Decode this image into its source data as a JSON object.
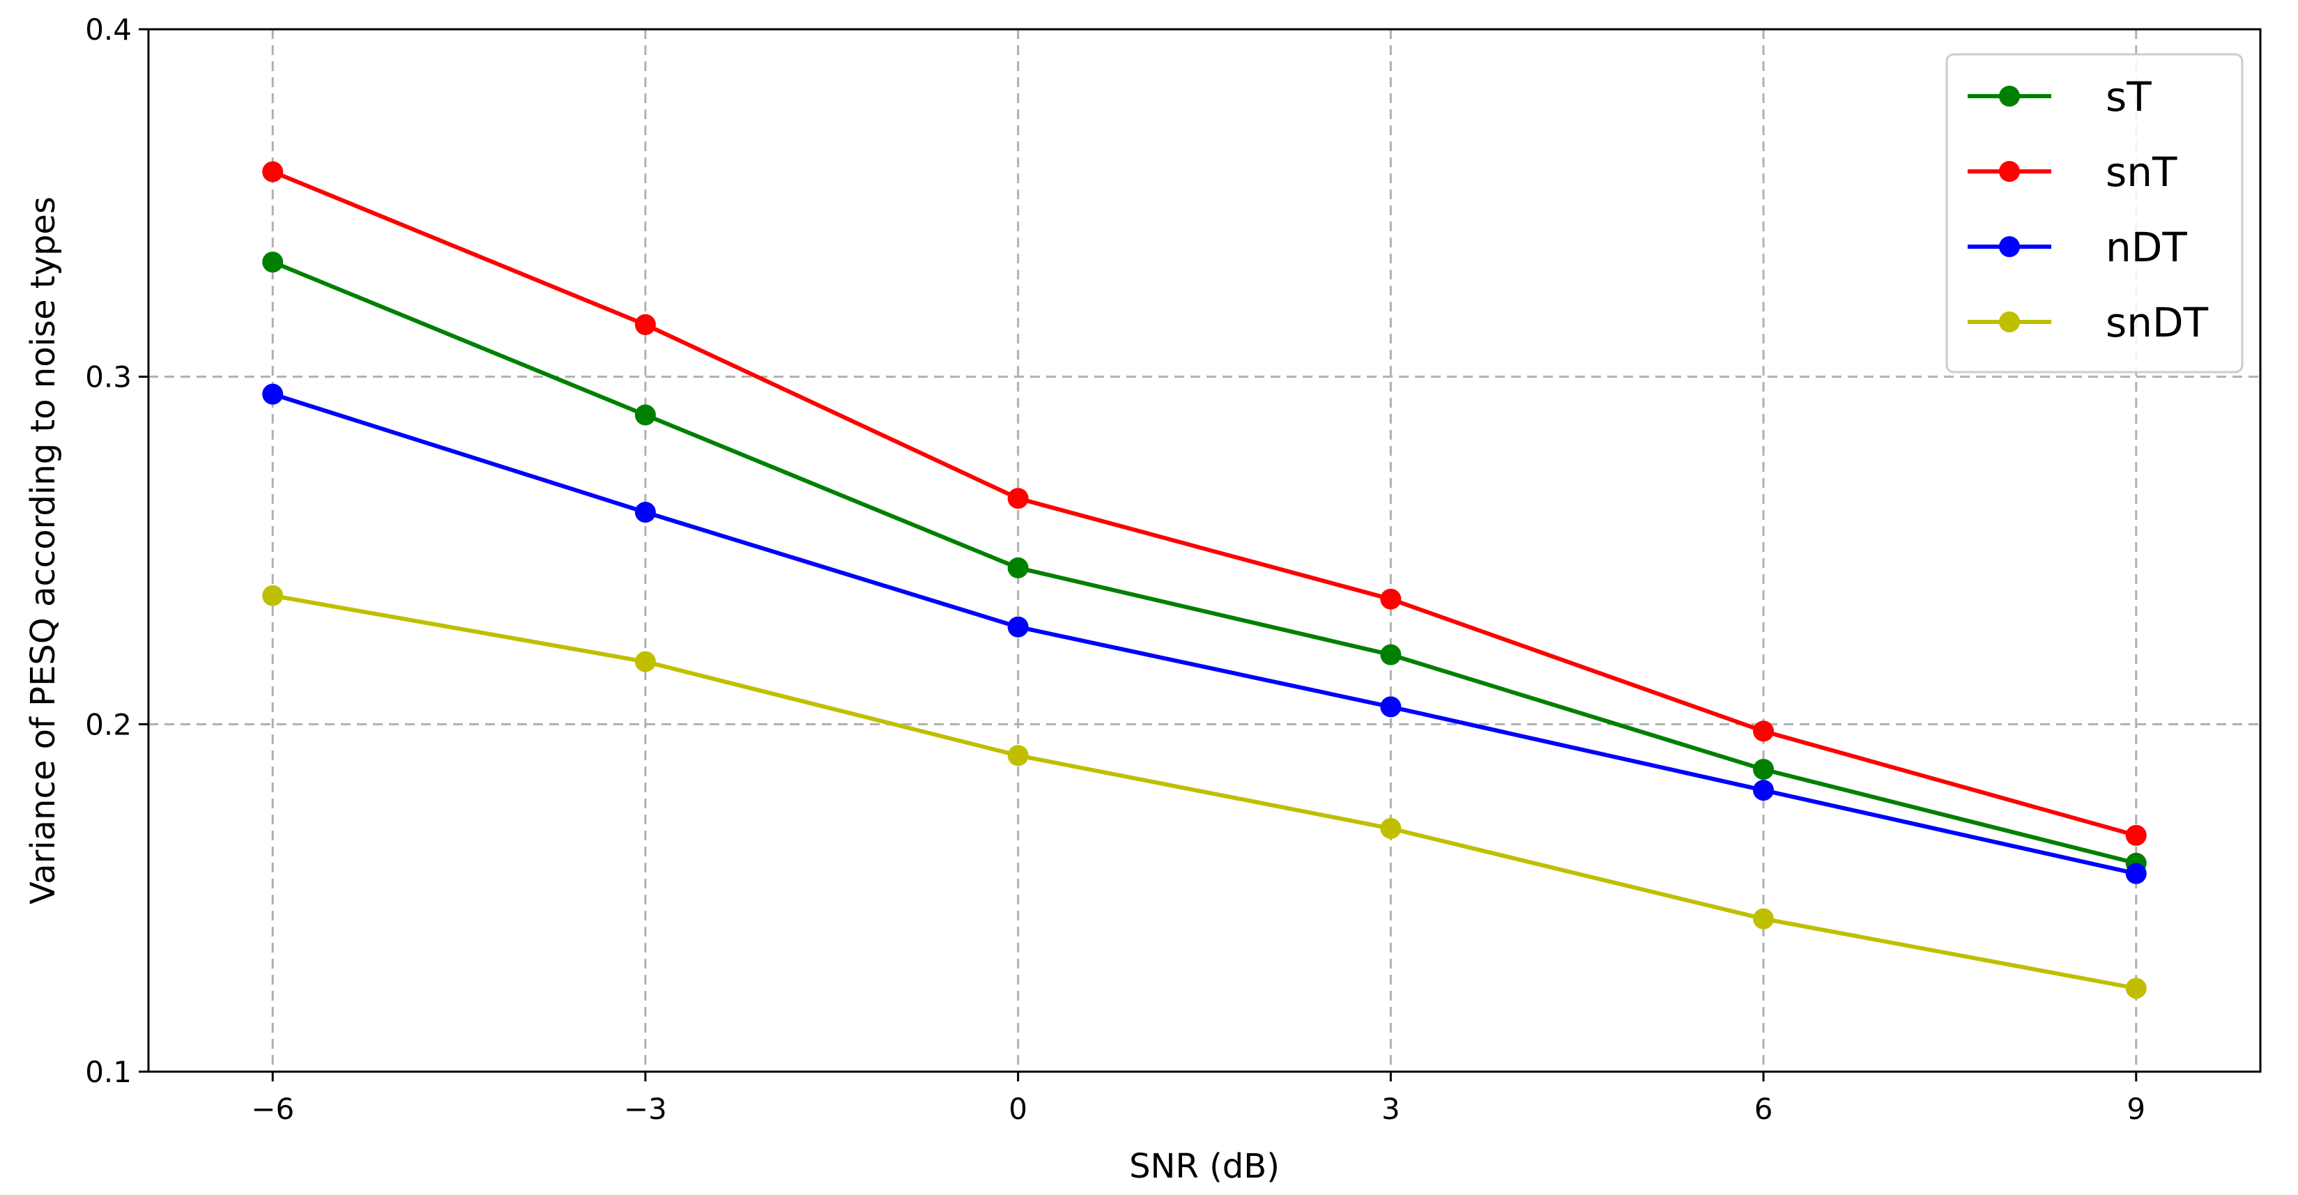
{
  "chart_data": {
    "type": "line",
    "title": "",
    "xlabel": "SNR (dB)",
    "ylabel": "Variance of PESQ according to noise types",
    "x": [
      -6,
      -3,
      0,
      3,
      6,
      9
    ],
    "x_tick_labels": [
      "−6",
      "−3",
      "0",
      "3",
      "6",
      "9"
    ],
    "y_ticks": [
      0.1,
      0.2,
      0.3,
      0.4
    ],
    "y_tick_labels": [
      "0.1",
      "0.2",
      "0.3",
      "0.4"
    ],
    "xlim": [
      -7,
      10
    ],
    "ylim": [
      0.1,
      0.4
    ],
    "grid": true,
    "legend_position": "top-right",
    "series": [
      {
        "name": "sT",
        "color": "#008000",
        "values": [
          0.333,
          0.289,
          0.245,
          0.22,
          0.187,
          0.16
        ]
      },
      {
        "name": "snT",
        "color": "#ff0000",
        "values": [
          0.359,
          0.315,
          0.265,
          0.236,
          0.198,
          0.168
        ]
      },
      {
        "name": "nDT",
        "color": "#0000ff",
        "values": [
          0.295,
          0.261,
          0.228,
          0.205,
          0.181,
          0.157
        ]
      },
      {
        "name": "snDT",
        "color": "#bfbf00",
        "values": [
          0.237,
          0.218,
          0.191,
          0.17,
          0.144,
          0.124
        ]
      }
    ]
  }
}
